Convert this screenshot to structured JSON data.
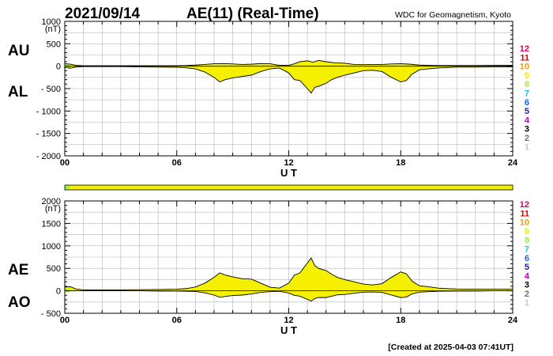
{
  "header": {
    "date": "2021/09/14",
    "title": "AE(11) (Real-Time)",
    "source": "WDC for Geomagnetism, Kyoto"
  },
  "footer": {
    "created": "[Created at 2025-04-03 07:41UT]"
  },
  "station_counts": {
    "labels": [
      "12",
      "11",
      "10",
      "9",
      "8",
      "7",
      "6",
      "5",
      "4",
      "3",
      "2",
      "1"
    ],
    "colors": [
      "#e0006a",
      "#e00000",
      "#f0a000",
      "#f0f000",
      "#a0f040",
      "#20c0f0",
      "#2060f0",
      "#2020a0",
      "#c000c0",
      "#000000",
      "#707070",
      "#c8c8c8"
    ]
  },
  "coverage_bar": {
    "segments": [
      {
        "start_hour": 0.0,
        "end_hour": 0.25,
        "stations": 8
      },
      {
        "start_hour": 0.25,
        "end_hour": 24.0,
        "stations": 9
      }
    ]
  },
  "chart_data": [
    {
      "type": "area",
      "panel_labels": [
        "AU",
        "AL"
      ],
      "unit_label": "(nT)",
      "xlabel": "U T",
      "xlim": [
        0,
        24
      ],
      "ylim": [
        -2000,
        1000
      ],
      "xticks": [
        "00",
        "06",
        "12",
        "18",
        "24"
      ],
      "yticks": [
        "1000",
        "500",
        "0",
        "- 500",
        "- 1000",
        "- 1500",
        "- 2000"
      ],
      "grid": true,
      "series": [
        {
          "name": "AU",
          "x": [
            0,
            0.3,
            0.6,
            1,
            1.5,
            2,
            3,
            4,
            5,
            6,
            6.5,
            7,
            7.5,
            8,
            8.5,
            9,
            9.5,
            10,
            10.5,
            11,
            11.5,
            12,
            12.3,
            12.6,
            13,
            13.3,
            13.6,
            14,
            14.5,
            15,
            15.5,
            16,
            16.5,
            17,
            17.5,
            18,
            18.5,
            19,
            19.5,
            20,
            21,
            22,
            23,
            24
          ],
          "values": [
            55,
            45,
            20,
            10,
            10,
            10,
            10,
            10,
            10,
            10,
            15,
            25,
            40,
            55,
            60,
            50,
            40,
            45,
            60,
            55,
            20,
            20,
            55,
            100,
            120,
            90,
            130,
            100,
            75,
            65,
            40,
            35,
            40,
            40,
            50,
            55,
            45,
            25,
            20,
            15,
            15,
            15,
            20,
            20
          ]
        },
        {
          "name": "AL",
          "x": [
            0,
            0.3,
            0.6,
            1,
            1.5,
            2,
            3,
            4,
            5,
            6,
            6.5,
            7,
            7.5,
            8,
            8.3,
            8.6,
            9,
            9.5,
            10,
            10.5,
            11,
            11.5,
            12,
            12.3,
            12.6,
            13,
            13.2,
            13.4,
            13.6,
            14,
            14.3,
            14.6,
            15,
            15.5,
            16,
            16.5,
            17,
            17.5,
            18,
            18.3,
            18.6,
            19,
            19.5,
            20,
            21,
            22,
            23,
            24
          ],
          "values": [
            -30,
            -45,
            -20,
            -10,
            -10,
            -10,
            -10,
            -15,
            -20,
            -25,
            -35,
            -60,
            -130,
            -250,
            -350,
            -300,
            -260,
            -230,
            -200,
            -120,
            -60,
            -40,
            -150,
            -300,
            -320,
            -500,
            -600,
            -470,
            -450,
            -380,
            -300,
            -250,
            -200,
            -150,
            -100,
            -90,
            -120,
            -250,
            -350,
            -320,
            -180,
            -80,
            -60,
            -40,
            -20,
            -20,
            -15,
            -15
          ]
        }
      ]
    },
    {
      "type": "area",
      "panel_labels": [
        "AE",
        "AO"
      ],
      "unit_label": "(nT)",
      "xlabel": "U T",
      "xlim": [
        0,
        24
      ],
      "ylim": [
        -500,
        2000
      ],
      "xticks": [
        "00",
        "06",
        "12",
        "18",
        "24"
      ],
      "yticks": [
        "2000",
        "1500",
        "1000",
        "500",
        "0",
        "- 500"
      ],
      "grid": true,
      "series": [
        {
          "name": "AE",
          "x": [
            0,
            0.3,
            0.6,
            1,
            2,
            3,
            4,
            5,
            6,
            6.5,
            7,
            7.5,
            8,
            8.3,
            8.6,
            9,
            9.5,
            10,
            10.5,
            11,
            11.5,
            12,
            12.3,
            12.6,
            13,
            13.2,
            13.4,
            13.6,
            14,
            14.3,
            14.6,
            15,
            15.5,
            16,
            16.5,
            17,
            17.5,
            18,
            18.3,
            18.6,
            19,
            19.5,
            20,
            21,
            22,
            23,
            24
          ],
          "values": [
            85,
            90,
            40,
            20,
            20,
            20,
            25,
            30,
            35,
            50,
            85,
            170,
            300,
            400,
            350,
            310,
            270,
            260,
            170,
            80,
            60,
            170,
            350,
            400,
            620,
            730,
            560,
            500,
            450,
            370,
            300,
            250,
            200,
            150,
            130,
            160,
            300,
            420,
            380,
            220,
            110,
            90,
            60,
            40,
            35,
            35,
            35
          ]
        },
        {
          "name": "AO",
          "x": [
            0,
            0.3,
            0.6,
            1,
            2,
            3,
            4,
            5,
            6,
            6.5,
            7,
            7.5,
            8,
            8.3,
            8.6,
            9,
            9.5,
            10,
            10.5,
            11,
            11.5,
            12,
            12.3,
            12.6,
            13,
            13.2,
            13.4,
            13.6,
            14,
            14.3,
            14.6,
            15,
            15.5,
            16,
            16.5,
            17,
            17.5,
            18,
            18.3,
            18.6,
            19,
            19.5,
            20,
            21,
            22,
            23,
            24
          ],
          "values": [
            10,
            0,
            0,
            0,
            0,
            0,
            0,
            -5,
            -5,
            -10,
            -15,
            -45,
            -95,
            -145,
            -125,
            -105,
            -95,
            -70,
            -35,
            -20,
            -10,
            -50,
            -100,
            -120,
            -190,
            -230,
            -170,
            -150,
            -150,
            -120,
            -90,
            -80,
            -55,
            -30,
            -25,
            -35,
            -95,
            -150,
            -140,
            -70,
            -30,
            -20,
            -10,
            -5,
            -5,
            0,
            0
          ]
        }
      ]
    }
  ]
}
